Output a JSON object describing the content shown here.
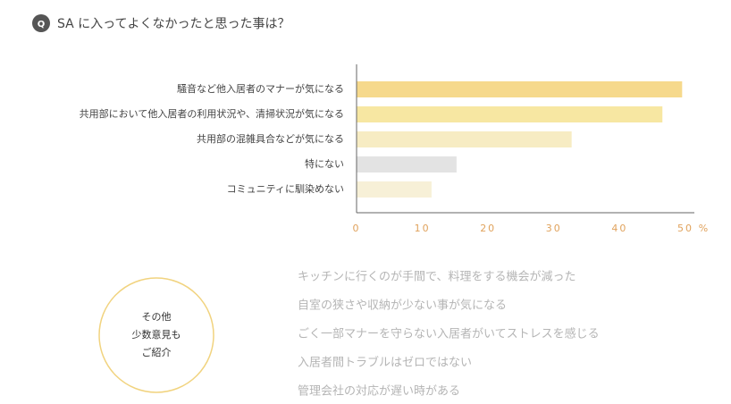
{
  "header": {
    "badge": "Q"
  },
  "chart_data": {
    "type": "bar",
    "orientation": "horizontal",
    "title": "SA に入ってよくなかったと思った事は？",
    "categories": [
      "騒音など他入居者のマナーが気になる",
      "共用部において他入居者の利用状況や、清掃状況が気になる",
      "共用部の混雑具合などが気になる",
      "特にない",
      "コミュニティに馴染めない"
    ],
    "values": [
      49.5,
      46.5,
      32.7,
      15.2,
      11.4
    ],
    "colors": [
      "#f6d98c",
      "#f7e7a2",
      "#f7ecc3",
      "#e3e3e3",
      "#f7f0d7"
    ],
    "xlim": [
      0,
      50
    ],
    "xticks": [
      0,
      10,
      20,
      30,
      40,
      50
    ],
    "x_unit": "%"
  },
  "other": {
    "label_lines": [
      "その他",
      "少数意見も",
      "ご紹介"
    ],
    "items": [
      "キッチンに行くのが手間で、料理をする機会が減った",
      "自室の狭さや収納が少ない事が気になる",
      "ごく一部マナーを守らない入居者がいてストレスを感じる",
      "入居者間トラブルはゼロではない",
      "管理会社の対応が遅い時がある"
    ]
  }
}
